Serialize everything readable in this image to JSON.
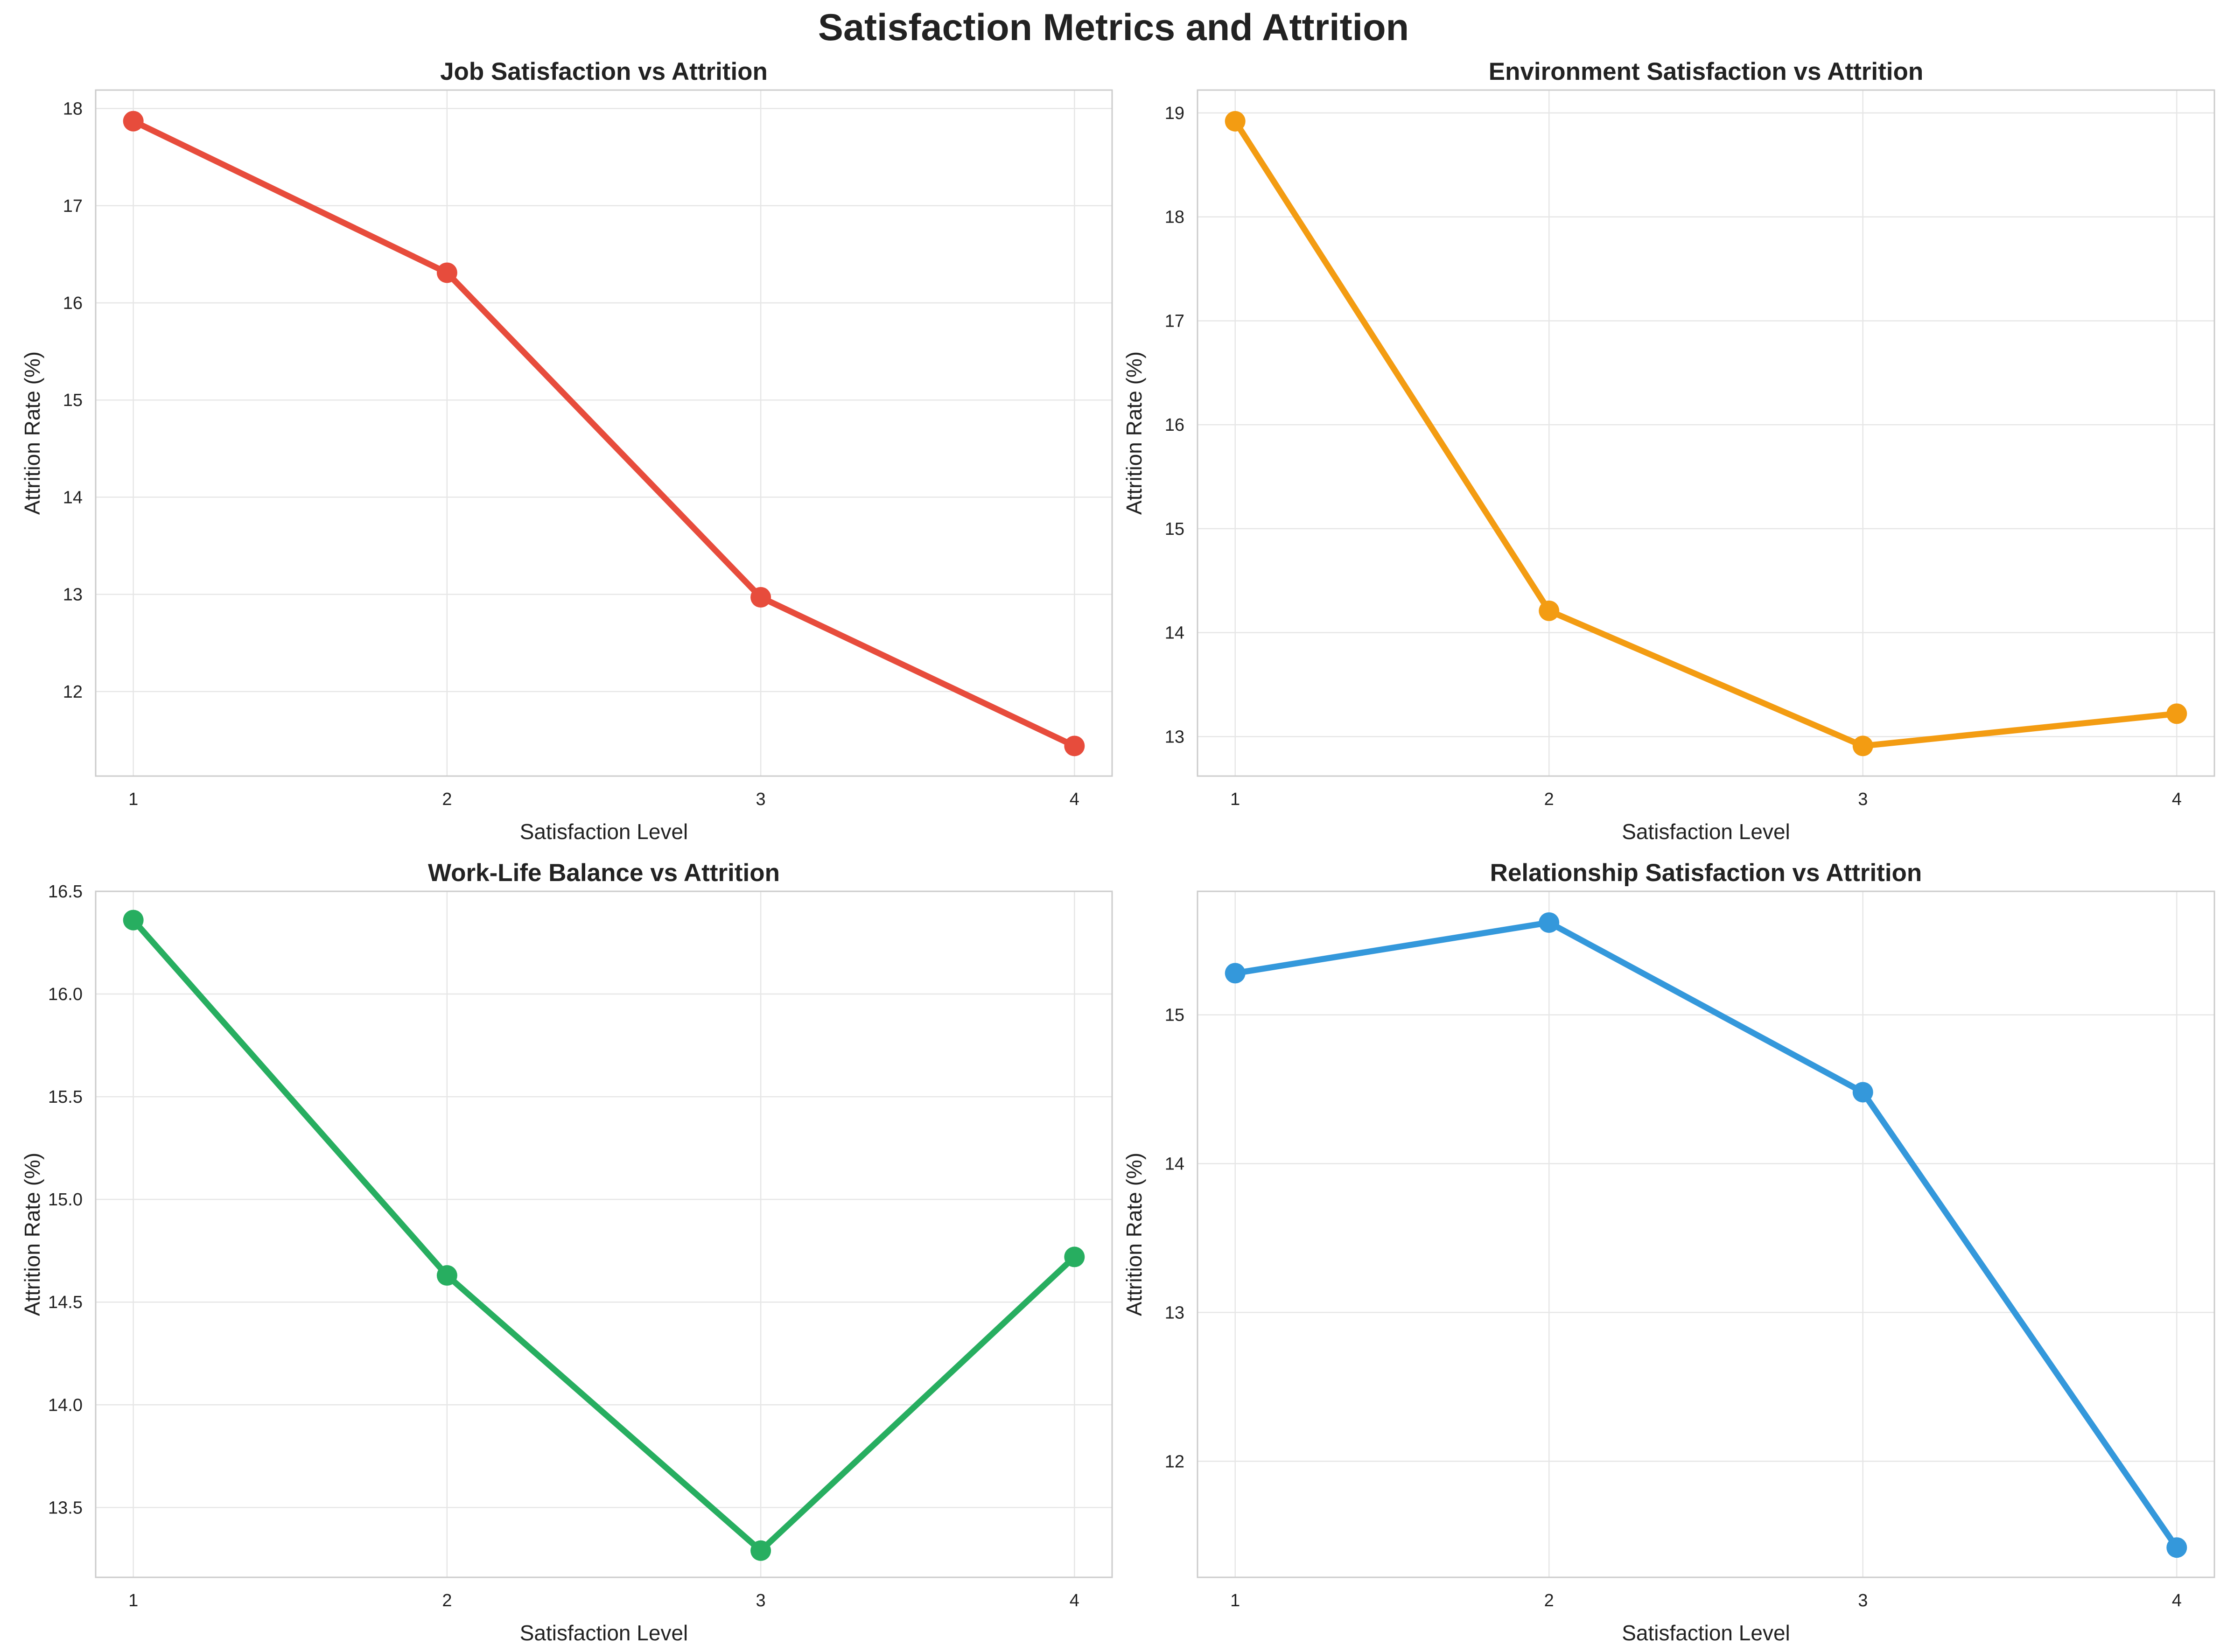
{
  "figure": {
    "title": "Satisfaction Metrics and Attrition"
  },
  "chart_data": [
    {
      "type": "line",
      "title": "Job Satisfaction vs Attrition",
      "xlabel": "Satisfaction Level",
      "ylabel": "Attrition Rate (%)",
      "x": [
        1,
        2,
        3,
        4
      ],
      "values": [
        17.87,
        16.31,
        12.97,
        11.44
      ],
      "xlim": [
        0.88,
        4.12
      ],
      "ylim": [
        11.13,
        18.19
      ],
      "xticks": [
        1,
        2,
        3,
        4
      ],
      "yticks": [
        12,
        13,
        14,
        15,
        16,
        17,
        18
      ],
      "color": "#e74c3c",
      "grid": true
    },
    {
      "type": "line",
      "title": "Environment Satisfaction vs Attrition",
      "xlabel": "Satisfaction Level",
      "ylabel": "Attrition Rate (%)",
      "x": [
        1,
        2,
        3,
        4
      ],
      "values": [
        18.92,
        14.21,
        12.91,
        13.22
      ],
      "xlim": [
        0.88,
        4.12
      ],
      "ylim": [
        12.62,
        19.22
      ],
      "xticks": [
        1,
        2,
        3,
        4
      ],
      "yticks": [
        13,
        14,
        15,
        16,
        17,
        18,
        19
      ],
      "color": "#f39c12",
      "grid": true
    },
    {
      "type": "line",
      "title": "Work-Life Balance vs Attrition",
      "xlabel": "Satisfaction Level",
      "ylabel": "Attrition Rate (%)",
      "x": [
        1,
        2,
        3,
        4
      ],
      "values": [
        16.36,
        14.63,
        13.29,
        14.72
      ],
      "xlim": [
        0.88,
        4.12
      ],
      "ylim": [
        13.16,
        16.5
      ],
      "xticks": [
        1,
        2,
        3,
        4
      ],
      "yticks": [
        13.5,
        14.0,
        14.5,
        15.0,
        15.5,
        16.0,
        16.5
      ],
      "ytick_decimals": 1,
      "color": "#27ae60",
      "grid": true
    },
    {
      "type": "line",
      "title": "Relationship Satisfaction vs Attrition",
      "xlabel": "Satisfaction Level",
      "ylabel": "Attrition Rate (%)",
      "x": [
        1,
        2,
        3,
        4
      ],
      "values": [
        15.28,
        15.62,
        14.48,
        11.42
      ],
      "xlim": [
        0.88,
        4.12
      ],
      "ylim": [
        11.22,
        15.83
      ],
      "xticks": [
        1,
        2,
        3,
        4
      ],
      "yticks": [
        12,
        13,
        14,
        15
      ],
      "color": "#3498db",
      "grid": true
    }
  ]
}
